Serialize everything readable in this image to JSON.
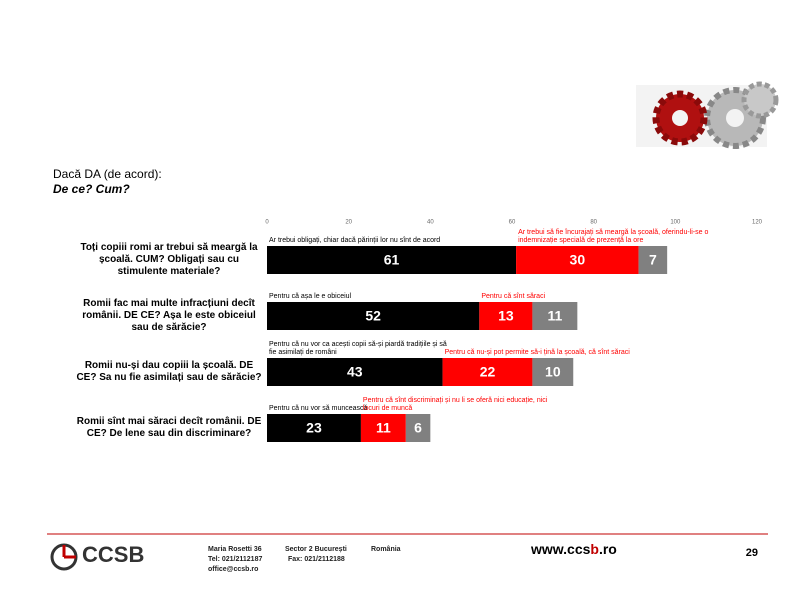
{
  "header": {
    "line1": "Dacă DA (de acord):",
    "line2": "De ce? Cum?"
  },
  "chart_data": {
    "type": "stacked-bar",
    "orientation": "horizontal",
    "categories": [
      "Toți copiii romi ar trebui să meargă la școală. CUM? Obligați sau cu stimulente materiale?",
      "Romii fac mai multe infracțiuni decît românii. DE CE?  Așa le este obiceiul sau de sărăcie?",
      "Romii nu-și dau copiii la școală. DE CE? Sa nu fie asimilați sau de sărăcie?",
      "Romii sînt mai săraci decît românii. DE CE? De lene sau din discriminare?"
    ],
    "series": [
      {
        "color": "#000000",
        "values": [
          61,
          52,
          43,
          23
        ],
        "annotations": [
          "Ar trebui obligați, chiar dacă părinții lor nu sînt de acord",
          "Pentru că așa le e obiceiul",
          "Pentru că nu vor ca acești copii să-și piardă tradițiile și să fie asimilați de români",
          "Pentru că nu vor să muncească"
        ]
      },
      {
        "color": "#ff0000",
        "values": [
          30,
          13,
          22,
          11
        ],
        "annotations": [
          "Ar trebui să fie încurajați să meargă la școală, oferindu-li-se o indemnizație specială de prezență la ore",
          "Pentru că sînt săraci",
          "Pentru că nu-și pot permite să-i țină la școală, că sînt săraci",
          "Pentru că sînt discriminați și nu li se oferă nici educație, nici locuri de muncă"
        ]
      },
      {
        "color": "#808080",
        "values": [
          7,
          11,
          10,
          6
        ]
      }
    ],
    "xlim": [
      0,
      120
    ],
    "xticks": [
      0,
      20,
      40,
      60,
      80,
      100,
      120
    ],
    "grid": false
  },
  "footer": {
    "logo": "CCSB",
    "address": "Maria Rosetti 36",
    "sector": "Sector 2  București",
    "country": "România",
    "tel": "Tel: 021/2112187",
    "fax": "Fax: 021/2112188",
    "email": "office@ccsb.ro",
    "web_a": "www.ccs",
    "web_b": "b",
    "web_c": ".ro",
    "page": "29"
  }
}
